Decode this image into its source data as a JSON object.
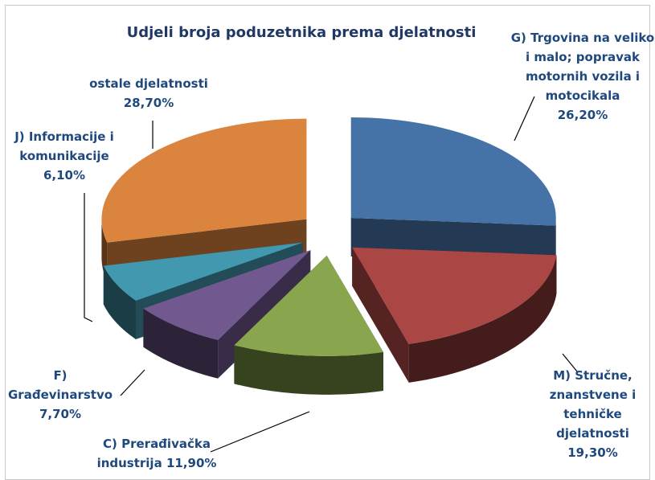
{
  "chart_data": {
    "type": "pie",
    "title": "Udjeli broja poduzetnika prema djelatnosti",
    "categories": [
      "G) Trgovina na veliko i malo; popravak motornih vozila i motocikala",
      "M) Stručne, znanstvene i tehničke djelatnosti",
      "C) Prerađivačka industrija",
      "F) Građevinarstvo",
      "J) Informacije i komunikacije",
      "ostale djelatnosti"
    ],
    "values": [
      26.2,
      19.3,
      11.9,
      7.7,
      6.1,
      28.7
    ],
    "value_labels": [
      "26,20%",
      "19,30%",
      "11,90%",
      "7,70%",
      "6,10%",
      "28,70%"
    ],
    "colors": [
      "#4572a7",
      "#aa4643",
      "#89a54e",
      "#71588f",
      "#4198af",
      "#db843d"
    ]
  }
}
